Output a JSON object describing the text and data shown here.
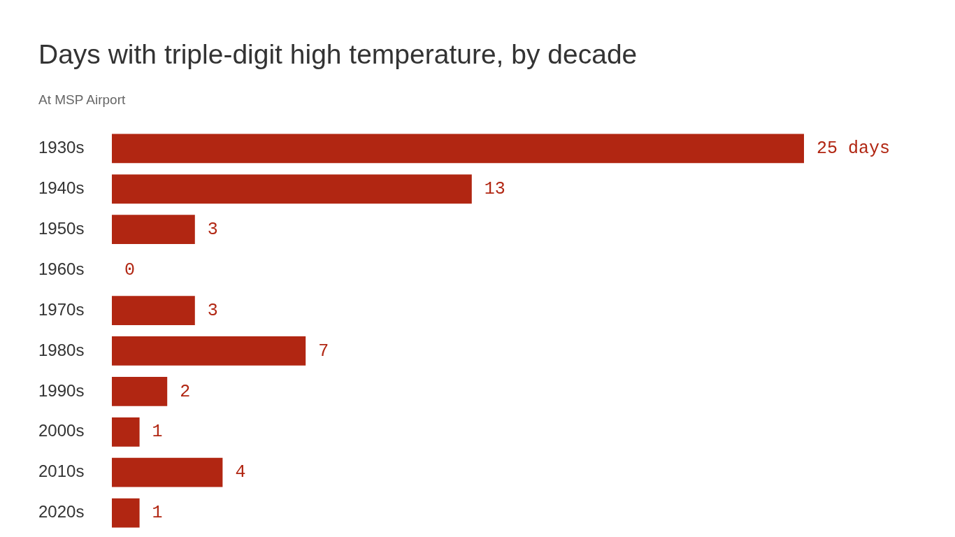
{
  "chart_data": {
    "type": "bar",
    "orientation": "horizontal",
    "title": "Days with triple-digit high temperature, by decade",
    "subtitle": "At MSP Airport",
    "categories": [
      "1930s",
      "1940s",
      "1950s",
      "1960s",
      "1970s",
      "1980s",
      "1990s",
      "2000s",
      "2010s",
      "2020s"
    ],
    "values": [
      25,
      13,
      3,
      0,
      3,
      7,
      2,
      1,
      4,
      1
    ],
    "value_labels": [
      "25 days",
      "13",
      "3",
      "0",
      "3",
      "7",
      "2",
      "1",
      "4",
      "1"
    ],
    "color": "#b12612",
    "grid": false,
    "legend": false,
    "tick_labels": "y"
  }
}
